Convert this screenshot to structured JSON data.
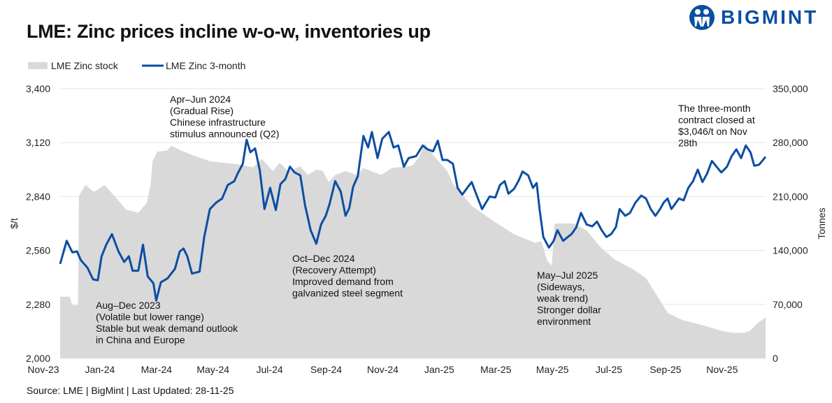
{
  "header": {
    "title": "LME: Zinc prices incline w-o-w, inventories up",
    "logo_text": "BIGMINT"
  },
  "footer": {
    "source": "Source: LME | BigMint | Last Updated: 28-11-25"
  },
  "colors": {
    "price": "#0b4ea2",
    "stock": "#d9d9d9",
    "grid": "#e3e3e3",
    "brand": "#0b4ea2"
  },
  "chart_data": {
    "type": "line+area",
    "title": "LME: Zinc prices incline w-o-w, inventories up",
    "legend": {
      "placement": "top-left",
      "entries": [
        "LME Zinc stock",
        "LME Zinc 3-month"
      ]
    },
    "ylabel": "$/t",
    "y2label": "Tonnes",
    "ylim": [
      2000,
      3400
    ],
    "y2lim": [
      0,
      350000
    ],
    "yticks": [
      "2,000",
      "2,280",
      "2,560",
      "2,840",
      "3,120",
      "3,400"
    ],
    "y2ticks": [
      "0",
      "70,000",
      "140,000",
      "210,000",
      "280,000",
      "350,000"
    ],
    "xticks": [
      "Nov-23",
      "Jan-24",
      "Mar-24",
      "May-24",
      "Jul-24",
      "Sep-24",
      "Nov-24",
      "Jan-25",
      "Mar-25",
      "May-25",
      "Jul-25",
      "Sep-25",
      "Nov-25"
    ],
    "xlim": [
      "2023-11-10",
      "2025-11-28"
    ],
    "grid": "horizontal",
    "series": [
      {
        "name": "LME Zinc stock",
        "type": "area",
        "axis": "right",
        "points": [
          [
            "2023-11-10",
            80000
          ],
          [
            "2023-11-20",
            80000
          ],
          [
            "2023-11-23",
            69000
          ],
          [
            "2023-11-29",
            69000
          ],
          [
            "2023-11-30",
            211000
          ],
          [
            "2023-12-07",
            225000
          ],
          [
            "2023-12-16",
            216000
          ],
          [
            "2023-12-27",
            225000
          ],
          [
            "2024-01-08",
            209000
          ],
          [
            "2024-01-19",
            193000
          ],
          [
            "2024-02-01",
            189000
          ],
          [
            "2024-02-10",
            202000
          ],
          [
            "2024-02-14",
            225000
          ],
          [
            "2024-02-16",
            255000
          ],
          [
            "2024-02-21",
            268000
          ],
          [
            "2024-03-03",
            270000
          ],
          [
            "2024-03-07",
            276000
          ],
          [
            "2024-03-17",
            270000
          ],
          [
            "2024-03-31",
            263000
          ],
          [
            "2024-04-17",
            256000
          ],
          [
            "2024-05-16",
            252000
          ],
          [
            "2024-06-02",
            248000
          ],
          [
            "2024-06-11",
            259000
          ],
          [
            "2024-06-23",
            243000
          ],
          [
            "2024-06-30",
            254000
          ],
          [
            "2024-07-09",
            243000
          ],
          [
            "2024-07-22",
            249000
          ],
          [
            "2024-07-30",
            238000
          ],
          [
            "2024-08-08",
            245000
          ],
          [
            "2024-08-15",
            243000
          ],
          [
            "2024-08-21",
            229000
          ],
          [
            "2024-08-28",
            238000
          ],
          [
            "2024-09-08",
            243000
          ],
          [
            "2024-09-20",
            238000
          ],
          [
            "2024-09-27",
            247000
          ],
          [
            "2024-10-16",
            238000
          ],
          [
            "2024-10-27",
            247000
          ],
          [
            "2024-11-18",
            250000
          ],
          [
            "2024-11-25",
            261000
          ],
          [
            "2024-12-01",
            279000
          ],
          [
            "2024-12-10",
            264000
          ],
          [
            "2024-12-25",
            243000
          ],
          [
            "2025-01-01",
            225000
          ],
          [
            "2025-01-20",
            198000
          ],
          [
            "2025-02-11",
            179000
          ],
          [
            "2025-03-06",
            161000
          ],
          [
            "2025-03-28",
            150000
          ],
          [
            "2025-04-04",
            152000
          ],
          [
            "2025-04-10",
            127000
          ],
          [
            "2025-04-15",
            120000
          ],
          [
            "2025-04-18",
            175000
          ],
          [
            "2025-05-08",
            175000
          ],
          [
            "2025-05-22",
            166000
          ],
          [
            "2025-06-06",
            144000
          ],
          [
            "2025-06-21",
            128000
          ],
          [
            "2025-07-10",
            116000
          ],
          [
            "2025-07-24",
            104000
          ],
          [
            "2025-08-08",
            75000
          ],
          [
            "2025-08-16",
            59000
          ],
          [
            "2025-08-31",
            50000
          ],
          [
            "2025-09-22",
            43000
          ],
          [
            "2025-10-14",
            35000
          ],
          [
            "2025-10-25",
            33000
          ],
          [
            "2025-11-05",
            33000
          ],
          [
            "2025-11-12",
            36000
          ],
          [
            "2025-11-20",
            46000
          ],
          [
            "2025-11-28",
            53000
          ]
        ]
      },
      {
        "name": "LME Zinc 3-month",
        "type": "line",
        "axis": "left",
        "points": [
          [
            "2023-11-10",
            2490
          ],
          [
            "2023-11-17",
            2610
          ],
          [
            "2023-11-23",
            2550
          ],
          [
            "2023-11-28",
            2555
          ],
          [
            "2023-12-02",
            2510
          ],
          [
            "2023-12-09",
            2470
          ],
          [
            "2023-12-15",
            2410
          ],
          [
            "2023-12-20",
            2405
          ],
          [
            "2023-12-24",
            2530
          ],
          [
            "2023-12-29",
            2590
          ],
          [
            "2024-01-04",
            2645
          ],
          [
            "2024-01-11",
            2555
          ],
          [
            "2024-01-17",
            2500
          ],
          [
            "2024-01-22",
            2530
          ],
          [
            "2024-01-26",
            2455
          ],
          [
            "2024-02-01",
            2455
          ],
          [
            "2024-02-06",
            2590
          ],
          [
            "2024-02-11",
            2425
          ],
          [
            "2024-02-17",
            2390
          ],
          [
            "2024-02-20",
            2300
          ],
          [
            "2024-02-25",
            2395
          ],
          [
            "2024-03-03",
            2415
          ],
          [
            "2024-03-11",
            2465
          ],
          [
            "2024-03-16",
            2555
          ],
          [
            "2024-03-20",
            2570
          ],
          [
            "2024-03-24",
            2530
          ],
          [
            "2024-03-29",
            2440
          ],
          [
            "2024-04-06",
            2450
          ],
          [
            "2024-04-11",
            2630
          ],
          [
            "2024-04-17",
            2775
          ],
          [
            "2024-04-24",
            2810
          ],
          [
            "2024-04-30",
            2830
          ],
          [
            "2024-05-06",
            2900
          ],
          [
            "2024-05-13",
            2920
          ],
          [
            "2024-05-16",
            2955
          ],
          [
            "2024-05-22",
            3010
          ],
          [
            "2024-05-26",
            3135
          ],
          [
            "2024-05-30",
            3070
          ],
          [
            "2024-06-04",
            3090
          ],
          [
            "2024-06-09",
            2975
          ],
          [
            "2024-06-14",
            2775
          ],
          [
            "2024-06-20",
            2885
          ],
          [
            "2024-06-26",
            2770
          ],
          [
            "2024-07-01",
            2905
          ],
          [
            "2024-07-06",
            2930
          ],
          [
            "2024-07-11",
            2995
          ],
          [
            "2024-07-16",
            2965
          ],
          [
            "2024-07-22",
            2950
          ],
          [
            "2024-07-27",
            2795
          ],
          [
            "2024-08-02",
            2665
          ],
          [
            "2024-08-08",
            2595
          ],
          [
            "2024-08-13",
            2695
          ],
          [
            "2024-08-18",
            2740
          ],
          [
            "2024-08-22",
            2800
          ],
          [
            "2024-08-28",
            2920
          ],
          [
            "2024-09-03",
            2865
          ],
          [
            "2024-09-08",
            2740
          ],
          [
            "2024-09-12",
            2780
          ],
          [
            "2024-09-16",
            2890
          ],
          [
            "2024-09-21",
            2945
          ],
          [
            "2024-09-27",
            3155
          ],
          [
            "2024-10-02",
            3095
          ],
          [
            "2024-10-06",
            3175
          ],
          [
            "2024-10-12",
            3040
          ],
          [
            "2024-10-17",
            3140
          ],
          [
            "2024-10-24",
            3175
          ],
          [
            "2024-10-29",
            3095
          ],
          [
            "2024-11-03",
            3105
          ],
          [
            "2024-11-09",
            2995
          ],
          [
            "2024-11-14",
            3040
          ],
          [
            "2024-11-22",
            3050
          ],
          [
            "2024-11-29",
            3105
          ],
          [
            "2024-12-04",
            3085
          ],
          [
            "2024-12-10",
            3075
          ],
          [
            "2024-12-15",
            3130
          ],
          [
            "2024-12-20",
            3030
          ],
          [
            "2024-12-25",
            3030
          ],
          [
            "2024-12-31",
            3010
          ],
          [
            "2025-01-05",
            2885
          ],
          [
            "2025-01-10",
            2850
          ],
          [
            "2025-01-16",
            2890
          ],
          [
            "2025-01-20",
            2915
          ],
          [
            "2025-01-25",
            2850
          ],
          [
            "2025-01-31",
            2775
          ],
          [
            "2025-02-08",
            2840
          ],
          [
            "2025-02-14",
            2835
          ],
          [
            "2025-02-19",
            2900
          ],
          [
            "2025-02-24",
            2920
          ],
          [
            "2025-02-28",
            2855
          ],
          [
            "2025-03-06",
            2880
          ],
          [
            "2025-03-11",
            2925
          ],
          [
            "2025-03-15",
            2970
          ],
          [
            "2025-03-21",
            2950
          ],
          [
            "2025-03-26",
            2885
          ],
          [
            "2025-03-30",
            2910
          ],
          [
            "2025-04-02",
            2775
          ],
          [
            "2025-04-06",
            2630
          ],
          [
            "2025-04-12",
            2575
          ],
          [
            "2025-04-17",
            2610
          ],
          [
            "2025-04-21",
            2665
          ],
          [
            "2025-04-27",
            2610
          ],
          [
            "2025-05-02",
            2630
          ],
          [
            "2025-05-06",
            2645
          ],
          [
            "2025-05-11",
            2680
          ],
          [
            "2025-05-16",
            2755
          ],
          [
            "2025-05-22",
            2695
          ],
          [
            "2025-05-28",
            2685
          ],
          [
            "2025-06-02",
            2710
          ],
          [
            "2025-06-07",
            2665
          ],
          [
            "2025-06-12",
            2630
          ],
          [
            "2025-06-17",
            2645
          ],
          [
            "2025-06-22",
            2680
          ],
          [
            "2025-06-26",
            2775
          ],
          [
            "2025-07-02",
            2740
          ],
          [
            "2025-07-07",
            2755
          ],
          [
            "2025-07-13",
            2810
          ],
          [
            "2025-07-19",
            2845
          ],
          [
            "2025-07-24",
            2830
          ],
          [
            "2025-07-29",
            2775
          ],
          [
            "2025-08-03",
            2740
          ],
          [
            "2025-08-08",
            2775
          ],
          [
            "2025-08-12",
            2810
          ],
          [
            "2025-08-16",
            2830
          ],
          [
            "2025-08-20",
            2775
          ],
          [
            "2025-08-23",
            2795
          ],
          [
            "2025-08-28",
            2830
          ],
          [
            "2025-09-02",
            2820
          ],
          [
            "2025-09-07",
            2885
          ],
          [
            "2025-09-12",
            2920
          ],
          [
            "2025-09-17",
            2980
          ],
          [
            "2025-09-22",
            2915
          ],
          [
            "2025-09-27",
            2960
          ],
          [
            "2025-10-02",
            3025
          ],
          [
            "2025-10-07",
            2995
          ],
          [
            "2025-10-12",
            2965
          ],
          [
            "2025-10-18",
            2995
          ],
          [
            "2025-10-23",
            3050
          ],
          [
            "2025-10-28",
            3085
          ],
          [
            "2025-11-02",
            3040
          ],
          [
            "2025-11-07",
            3105
          ],
          [
            "2025-11-12",
            3070
          ],
          [
            "2025-11-16",
            3000
          ],
          [
            "2025-11-21",
            3005
          ],
          [
            "2025-11-28",
            3046
          ]
        ]
      }
    ],
    "annotations": [
      {
        "lines": [
          "Apr–Jun 2024",
          "(Gradual Rise)",
          "Chinese infrastructure",
          "stimulus announced (Q2)"
        ]
      },
      {
        "lines": [
          "Aug–Dec 2023",
          "(Volatile but lower range)",
          "Stable but weak demand outlook",
          "in China and Europe"
        ]
      },
      {
        "lines": [
          "Oct–Dec 2024",
          "(Recovery Attempt)",
          "Improved demand from",
          "galvanized steel segment"
        ]
      },
      {
        "lines": [
          "May–Jul 2025",
          "(Sideways,",
          "weak trend)",
          "Stronger dollar",
          "environment"
        ]
      },
      {
        "lines": [
          "The three-month",
          "contract closed at",
          "$3,046/t on Nov",
          "28th"
        ]
      }
    ]
  }
}
